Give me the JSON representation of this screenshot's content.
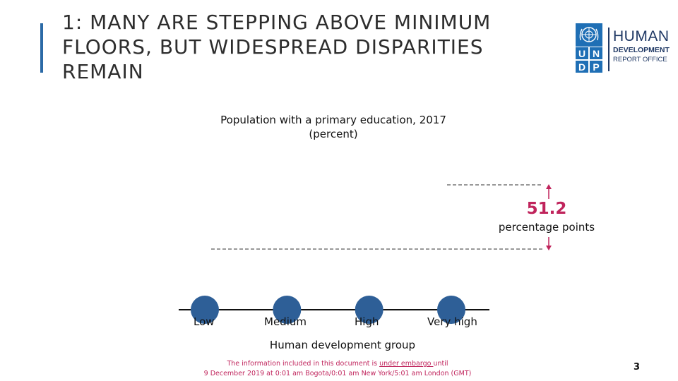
{
  "slide": {
    "title": "1: MANY ARE STEPPING ABOVE MINIMUM FLOORS, BUT WIDESPREAD DISPARITIES REMAIN",
    "page_number": "3",
    "accent_color": "#2b6aa6"
  },
  "logo": {
    "undp_letters": [
      "U",
      "N",
      "D",
      "P"
    ],
    "line1": "HUMAN",
    "line2": "DEVELOPMENT",
    "line3": "REPORT OFFICE",
    "brand_color": "#1f6fb5",
    "text_color": "#1f3864"
  },
  "chart_data": {
    "type": "scatter",
    "title": "Population with a primary education, 2017",
    "subtitle": "(percent)",
    "xlabel": "Human development group",
    "categories": [
      "Low",
      "Medium",
      "High",
      "Very high"
    ],
    "point_color": "#2e5f97",
    "gap": {
      "value": "51.2",
      "unit": "percentage points",
      "color": "#c0245c"
    }
  },
  "footer": {
    "embargo_prefix": "The information included in this document is ",
    "embargo_emphasis": "under embargo ",
    "embargo_suffix": "until",
    "embargo_line2": "9 December 2019 at 0:01 am Bogota/0:01 am New York/5:01 am London (GMT)"
  }
}
